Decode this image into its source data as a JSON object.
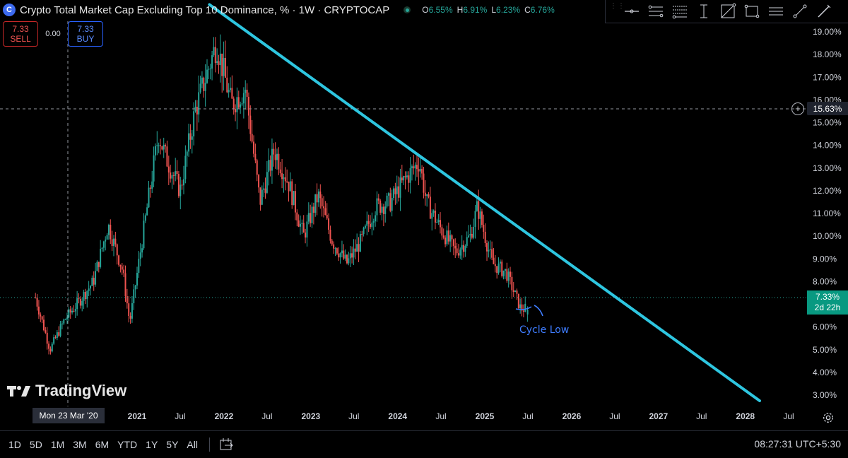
{
  "header": {
    "title": "Crypto Total Market Cap Excluding Top 10 Dominance, % · 1W · CRYPTOCAP",
    "logo_glyph": "C",
    "ohlc": [
      {
        "k": "O",
        "v": "6.55%"
      },
      {
        "k": "H",
        "v": "6.91%"
      },
      {
        "k": "L",
        "v": "6.23%"
      },
      {
        "k": "C",
        "v": "6.76%"
      }
    ]
  },
  "trade": {
    "sell_price": "7.33",
    "sell_label": "SELL",
    "spread": "0.00",
    "buy_price": "7.33",
    "buy_label": "BUY"
  },
  "toolbar_icons": [
    "horizontal-line-icon",
    "parallel-channel-icon",
    "fib-retracement-icon",
    "long-position-icon",
    "measure-icon",
    "rectangle-icon",
    "text-lines-icon",
    "trend-line-icon",
    "pencil-icon"
  ],
  "price_scale": {
    "crosshair_value": "15.63%",
    "last_value": "7.33%",
    "countdown": "2d 22h"
  },
  "crosshair_date": "Mon 23 Mar '20",
  "watermark": "TradingView",
  "annotation": "Cycle Low",
  "bottom_bar": {
    "ranges": [
      "1D",
      "5D",
      "1M",
      "3M",
      "6M",
      "YTD",
      "1Y",
      "5Y",
      "All"
    ],
    "clock": "08:27:31 UTC+5:30"
  },
  "colors": {
    "up": "#26a69a",
    "down": "#ef5350",
    "trendline": "#2ec6e0",
    "annotation": "#3f7dff",
    "background": "#000000"
  },
  "chart_data": {
    "type": "candlestick",
    "timeframe": "1W",
    "y_unit": "%",
    "ylim": [
      2.5,
      19.5
    ],
    "y_ticks": [
      "3.00%",
      "4.00%",
      "5.00%",
      "6.00%",
      "7.00%",
      "8.00%",
      "9.00%",
      "10.00%",
      "11.00%",
      "12.00%",
      "13.00%",
      "14.00%",
      "15.00%",
      "16.00%",
      "17.00%",
      "18.00%",
      "19.00%"
    ],
    "x_ticks": [
      "Jul",
      "2021",
      "Jul",
      "2022",
      "Jul",
      "2023",
      "Jul",
      "2024",
      "Jul",
      "2025",
      "Jul",
      "2026",
      "Jul",
      "2027",
      "Jul",
      "2028",
      "Jul"
    ],
    "close_path": [
      {
        "date": "2019-11",
        "value": 7.3
      },
      {
        "date": "2020-01",
        "value": 5.0
      },
      {
        "date": "2020-03",
        "value": 6.3
      },
      {
        "date": "2020-05",
        "value": 7.1
      },
      {
        "date": "2020-07",
        "value": 8.0
      },
      {
        "date": "2020-09",
        "value": 10.5
      },
      {
        "date": "2020-11",
        "value": 8.5
      },
      {
        "date": "2020-12",
        "value": 6.2
      },
      {
        "date": "2021-02",
        "value": 10.5
      },
      {
        "date": "2021-04",
        "value": 14.5
      },
      {
        "date": "2021-05",
        "value": 13.5
      },
      {
        "date": "2021-07",
        "value": 12.0
      },
      {
        "date": "2021-09",
        "value": 15.5
      },
      {
        "date": "2021-12",
        "value": 18.5
      },
      {
        "date": "2022-02",
        "value": 15.8
      },
      {
        "date": "2022-04",
        "value": 16.5
      },
      {
        "date": "2022-06",
        "value": 11.5
      },
      {
        "date": "2022-08",
        "value": 13.8
      },
      {
        "date": "2022-10",
        "value": 12.3
      },
      {
        "date": "2022-12",
        "value": 10.0
      },
      {
        "date": "2023-02",
        "value": 11.8
      },
      {
        "date": "2023-04",
        "value": 9.8
      },
      {
        "date": "2023-06",
        "value": 8.8
      },
      {
        "date": "2023-08",
        "value": 9.8
      },
      {
        "date": "2023-10",
        "value": 11.3
      },
      {
        "date": "2023-12",
        "value": 11.5
      },
      {
        "date": "2024-02",
        "value": 12.5
      },
      {
        "date": "2024-04",
        "value": 13.3
      },
      {
        "date": "2024-05",
        "value": 11.5
      },
      {
        "date": "2024-07",
        "value": 10.3
      },
      {
        "date": "2024-09",
        "value": 9.3
      },
      {
        "date": "2024-11",
        "value": 10.0
      },
      {
        "date": "2024-12",
        "value": 11.3
      },
      {
        "date": "2025-02",
        "value": 8.8
      },
      {
        "date": "2025-04",
        "value": 8.4
      },
      {
        "date": "2025-06",
        "value": 6.8
      }
    ],
    "last_value": 7.33,
    "trendline": [
      {
        "date": "2021-11",
        "value": 20.2
      },
      {
        "date": "2028-03",
        "value": 2.75
      }
    ]
  }
}
